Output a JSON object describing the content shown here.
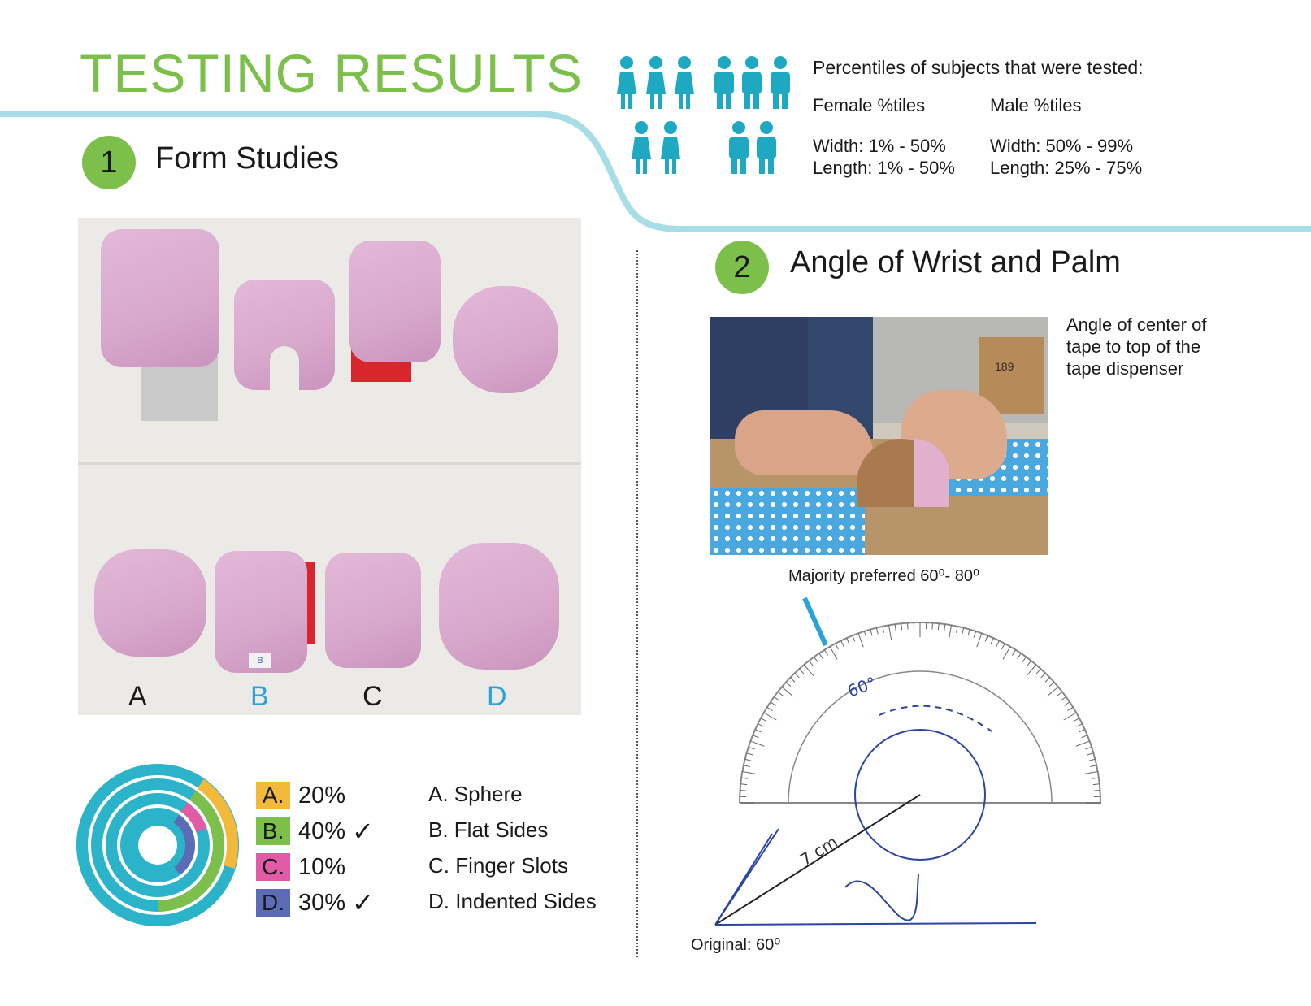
{
  "title": "TESTING RESULTS",
  "colors": {
    "green": "#7cc04b",
    "teal": "#2ab3c9",
    "blue_letter": "#2aa3dd",
    "swatch_a": "#f2b93b",
    "swatch_b": "#7cc04b",
    "swatch_c": "#e15ba6",
    "swatch_d": "#5b6bb5"
  },
  "demographics": {
    "heading": "Percentiles of subjects that were tested:",
    "female": {
      "label": "Female %tiles",
      "width": "Width: 1% - 50%",
      "length": "Length: 1% - 50%"
    },
    "male": {
      "label": "Male %tiles",
      "width": "Width: 50% - 99%",
      "length": "Length: 25% - 75%"
    },
    "icons": [
      "female-figure-icon",
      "male-figure-icon"
    ]
  },
  "section1": {
    "number": "1",
    "title": "Form Studies",
    "photo_letters": [
      "A",
      "B",
      "C",
      "D"
    ],
    "block_label": "B",
    "results": [
      {
        "letter": "A.",
        "percent": "20%",
        "check": "",
        "name": "A. Sphere",
        "share": 0.2
      },
      {
        "letter": "B.",
        "percent": "40%",
        "check": "✓",
        "name": "B. Flat Sides",
        "share": 0.4
      },
      {
        "letter": "C.",
        "percent": "10%",
        "check": "",
        "name": "C. Finger Slots",
        "share": 0.1
      },
      {
        "letter": "D.",
        "percent": "30%",
        "check": "✓",
        "name": "D. Indented Sides",
        "share": 0.3
      }
    ]
  },
  "section2": {
    "number": "2",
    "title": "Angle of Wrist and Palm",
    "caption_lines": [
      "Angle of center of",
      "tape to top of the",
      "tape dispenser"
    ],
    "box_label": "189",
    "preferred": "Majority preferred 60⁰- 80⁰",
    "original": "Original: 60⁰",
    "sketch_angle": "60°",
    "sketch_length": "7 cm"
  }
}
